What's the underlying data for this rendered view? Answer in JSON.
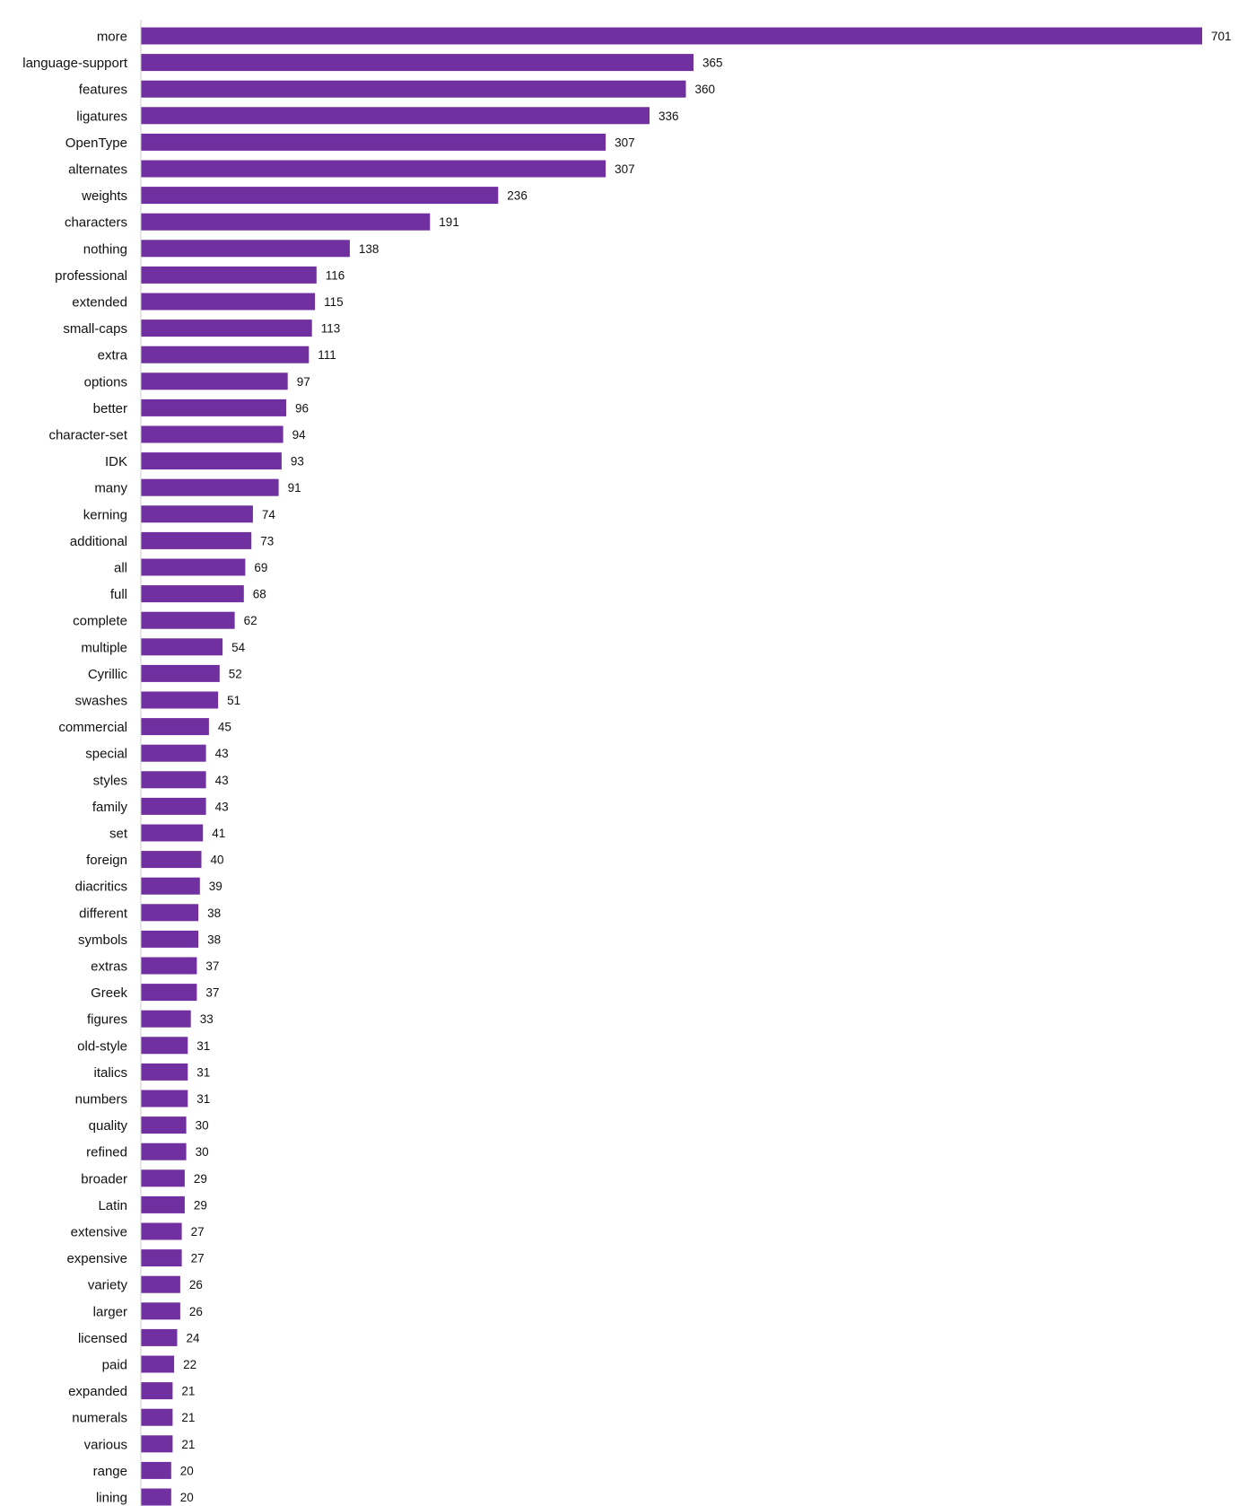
{
  "chart_data": {
    "type": "bar",
    "orientation": "horizontal",
    "title": "",
    "xlabel": "",
    "ylabel": "",
    "grid": false,
    "legend": "none",
    "bar_color": "#7030a0",
    "axis_color": "#cccccc",
    "xlim": [
      0,
      701
    ],
    "categories": [
      "more",
      "language-support",
      "features",
      "ligatures",
      "OpenType",
      "alternates",
      "weights",
      "characters",
      "nothing",
      "professional",
      "extended",
      "small-caps",
      "extra",
      "options",
      "better",
      "character-set",
      "IDK",
      "many",
      "kerning",
      "additional",
      "all",
      "full",
      "complete",
      "multiple",
      "Cyrillic",
      "swashes",
      "commercial",
      "special",
      "styles",
      "family",
      "set",
      "foreign",
      "diacritics",
      "different",
      "symbols",
      "extras",
      "Greek",
      "figures",
      "old-style",
      "italics",
      "numbers",
      "quality",
      "refined",
      "broader",
      "Latin",
      "extensive",
      "expensive",
      "variety",
      "larger",
      "licensed",
      "paid",
      "expanded",
      "numerals",
      "various",
      "range",
      "lining"
    ],
    "values": [
      701,
      365,
      360,
      336,
      307,
      307,
      236,
      191,
      138,
      116,
      115,
      113,
      111,
      97,
      96,
      94,
      93,
      91,
      74,
      73,
      69,
      68,
      62,
      54,
      52,
      51,
      45,
      43,
      43,
      43,
      41,
      40,
      39,
      38,
      38,
      37,
      37,
      33,
      31,
      31,
      31,
      30,
      30,
      29,
      29,
      27,
      27,
      26,
      26,
      24,
      22,
      21,
      21,
      21,
      20,
      20
    ]
  }
}
